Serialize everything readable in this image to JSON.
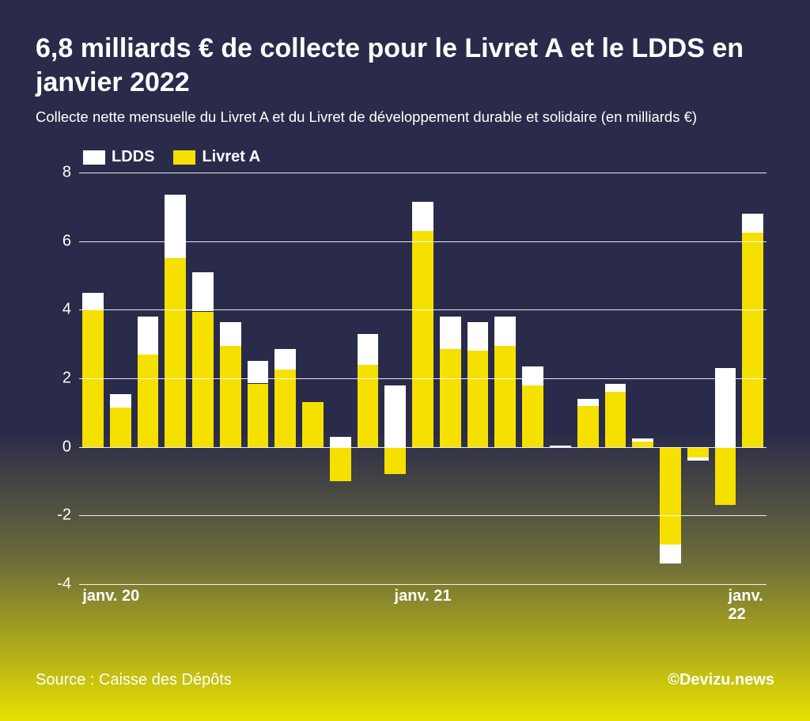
{
  "title": "6,8 milliards € de collecte pour le Livret A et le LDDS en janvier 2022",
  "subtitle": "Collecte nette mensuelle du Livret A et du Livret de développement durable et solidaire (en milliards €)",
  "source": "Source : Caisse des Dépôts",
  "credit": "©Devizu.news",
  "chart": {
    "type": "stacked-bar",
    "legend": [
      {
        "label": "LDDS",
        "color": "#ffffff"
      },
      {
        "label": "Livret A",
        "color": "#f5e000"
      }
    ],
    "y_axis": {
      "min": -4,
      "max": 8,
      "ticks": [
        -4,
        -2,
        0,
        2,
        4,
        6,
        8
      ],
      "grid_color": "#ffffff"
    },
    "x_labels": [
      {
        "label": "janv. 20",
        "index": 0
      },
      {
        "label": "janv. 21",
        "index": 12
      },
      {
        "label": "janv. 22",
        "index": 24
      }
    ],
    "colors": {
      "livretA": "#f5e000",
      "ldds": "#ffffff"
    },
    "bar_width_ratio": 0.9,
    "series": [
      {
        "livretA": 4.0,
        "ldds": 0.5
      },
      {
        "livretA": 1.15,
        "ldds": 0.4
      },
      {
        "livretA": 2.7,
        "ldds": 1.1
      },
      {
        "livretA": 5.5,
        "ldds": 1.85
      },
      {
        "livretA": 3.95,
        "ldds": 1.15
      },
      {
        "livretA": 2.95,
        "ldds": 0.7
      },
      {
        "livretA": 1.85,
        "ldds": 0.65
      },
      {
        "livretA": 2.25,
        "ldds": 0.6
      },
      {
        "livretA": 1.3,
        "ldds": 0.0
      },
      {
        "livretA": -1.0,
        "ldds": 0.3
      },
      {
        "livretA": 2.4,
        "ldds": 0.9
      },
      {
        "livretA": -0.8,
        "ldds": 1.8
      },
      {
        "livretA": 6.3,
        "ldds": 0.85
      },
      {
        "livretA": 2.85,
        "ldds": 0.95
      },
      {
        "livretA": 2.8,
        "ldds": 0.85
      },
      {
        "livretA": 2.95,
        "ldds": 0.85
      },
      {
        "livretA": 1.8,
        "ldds": 0.55
      },
      {
        "livretA": 0.0,
        "ldds": 0.05
      },
      {
        "livretA": 1.2,
        "ldds": 0.2
      },
      {
        "livretA": 1.6,
        "ldds": 0.25
      },
      {
        "livretA": 0.15,
        "ldds": 0.1
      },
      {
        "livretA": -2.85,
        "ldds": -0.55
      },
      {
        "livretA": -0.3,
        "ldds": -0.1
      },
      {
        "livretA": -1.7,
        "ldds": 2.3
      },
      {
        "livretA": 6.25,
        "ldds": 0.55
      }
    ]
  }
}
